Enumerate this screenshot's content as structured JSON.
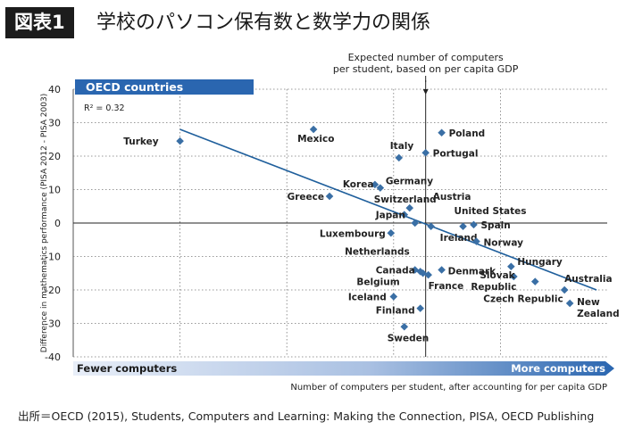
{
  "header": {
    "figure_tag": "図表1",
    "title": "学校のパソコン保有数と数学力の関係"
  },
  "source_note": "出所＝OECD (2015), Students, Computers and Learning: Making the Connection, PISA, OECD Publishing",
  "colors": {
    "point": "#3a6fa5",
    "trend_line": "#1f5f9c",
    "banner": "#2a66b0",
    "arrow_light": "#e8eef8",
    "arrow_dark": "#2a66b0"
  },
  "chart_data": {
    "type": "scatter",
    "banner_label": "OECD countries",
    "annotation_top": [
      "Expected number of computers",
      "per student, based on per capita GDP"
    ],
    "r_squared": "R² = 0.32",
    "ylabel": "Difference in mathematics performance (PISA 2012 - PISA 2003)",
    "xlabel": "Number of computers per student, after accounting for per capita GDP",
    "x_left_label": "Fewer computers",
    "x_right_label": "More computers",
    "ylim": [
      -40,
      40
    ],
    "xlim": [
      0,
      100
    ],
    "yticks": [
      40,
      30,
      20,
      10,
      0,
      -10,
      -20,
      -30,
      -40
    ],
    "x_vertical_gridlines": [
      20,
      40,
      60,
      80
    ],
    "x_expected_line": 66,
    "grid": true,
    "trendline": {
      "x": [
        20,
        98
      ],
      "y": [
        28,
        -20
      ]
    },
    "points": [
      {
        "name": "Turkey",
        "x": 20,
        "y": 24.5
      },
      {
        "name": "Mexico",
        "x": 45,
        "y": 28
      },
      {
        "name": "Poland",
        "x": 69,
        "y": 27
      },
      {
        "name": "Italy",
        "x": 61,
        "y": 19.5
      },
      {
        "name": "Portugal",
        "x": 66,
        "y": 21
      },
      {
        "name": "Greece",
        "x": 48,
        "y": 8
      },
      {
        "name": "Korea",
        "x": 56.5,
        "y": 11.5
      },
      {
        "name": "Germany",
        "x": 57.5,
        "y": 10.5
      },
      {
        "name": "Switzerland",
        "x": 63,
        "y": 4.5
      },
      {
        "name": "Japan",
        "x": 62,
        "y": 2.5
      },
      {
        "name": "Austria",
        "x": 64,
        "y": 0
      },
      {
        "name": "United States",
        "x": 73,
        "y": -1
      },
      {
        "name": "Spain",
        "x": 75,
        "y": -0.5
      },
      {
        "name": "Ireland",
        "x": 67,
        "y": -1
      },
      {
        "name": "Norway",
        "x": 75.5,
        "y": -5.5
      },
      {
        "name": "Luxembourg",
        "x": 59.5,
        "y": -3
      },
      {
        "name": "Netherlands",
        "x": 64,
        "y": -14
      },
      {
        "name": "Canada",
        "x": 65,
        "y": -14.5
      },
      {
        "name": "Belgium",
        "x": 65.5,
        "y": -15
      },
      {
        "name": "France",
        "x": 66.5,
        "y": -15.5
      },
      {
        "name": "Denmark",
        "x": 69,
        "y": -14
      },
      {
        "name": "Iceland",
        "x": 60,
        "y": -22
      },
      {
        "name": "Finland",
        "x": 65,
        "y": -25.5
      },
      {
        "name": "Sweden",
        "x": 62,
        "y": -31
      },
      {
        "name": "Hungary",
        "x": 82,
        "y": -13
      },
      {
        "name": "Slovak Republic",
        "x": 82.5,
        "y": -16
      },
      {
        "name": "Czech Republic",
        "x": 86.5,
        "y": -17.5
      },
      {
        "name": "Australia",
        "x": 92,
        "y": -20
      },
      {
        "name": "New Zealand",
        "x": 93,
        "y": -24
      }
    ]
  }
}
